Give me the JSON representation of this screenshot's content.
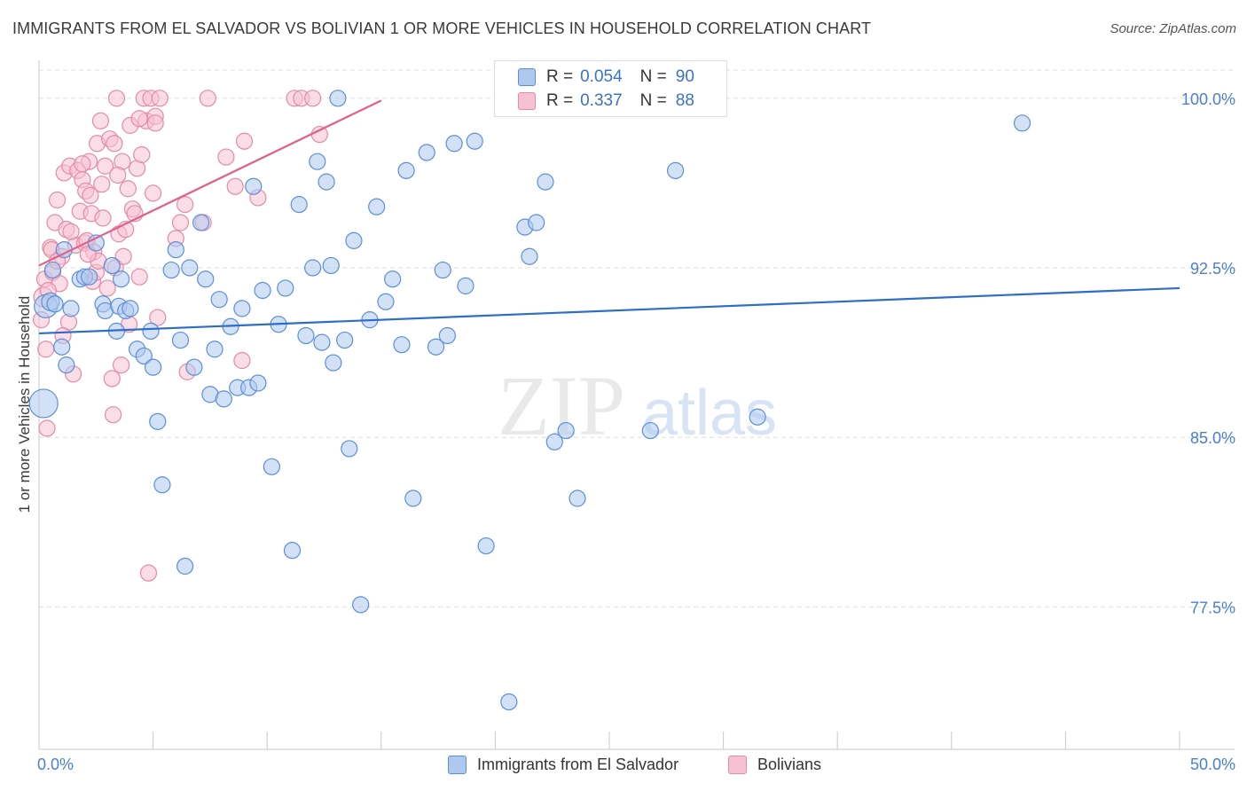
{
  "title": "IMMIGRANTS FROM EL SALVADOR VS BOLIVIAN 1 OR MORE VEHICLES IN HOUSEHOLD CORRELATION CHART",
  "source": "Source: ZipAtlas.com",
  "watermark": {
    "zip": "ZIP",
    "atlas": "atlas"
  },
  "legend": {
    "rows": [
      {
        "r_label": "R =",
        "r_value": "0.054",
        "n_label": "N =",
        "n_value": "90"
      },
      {
        "r_label": "R =",
        "r_value": "0.337",
        "n_label": "N =",
        "n_value": "88"
      }
    ]
  },
  "bottom_legend": [
    "Immigrants from El Salvador",
    "Bolivians"
  ],
  "colors": {
    "blue_fill": "#aec8ee",
    "blue_stroke": "#5b8fd8",
    "blue_line": "#2e6dc8",
    "pink_fill": "#f6c1d1",
    "pink_stroke": "#e58aa8",
    "pink_line": "#e0608a",
    "tick_label": "#4a7fd0",
    "grid": "#dedede"
  },
  "chart_data": {
    "type": "scatter",
    "title": "IMMIGRANTS FROM EL SALVADOR VS BOLIVIAN 1 OR MORE VEHICLES IN HOUSEHOLD CORRELATION CHART",
    "xlabel": "",
    "ylabel": "1 or more Vehicles in Household",
    "xlim": [
      0,
      50
    ],
    "ylim": [
      71.2,
      101.6
    ],
    "x_tick_labels": [
      {
        "value": 0,
        "label": "0.0%"
      },
      {
        "value": 50,
        "label": "50.0%"
      }
    ],
    "y_ticks": [
      {
        "value": 100.0,
        "label": "100.0%"
      },
      {
        "value": 92.5,
        "label": "92.5%"
      },
      {
        "value": 85.0,
        "label": "85.0%"
      },
      {
        "value": 77.5,
        "label": "77.5%"
      }
    ],
    "grid": true,
    "series": [
      {
        "name": "Immigrants from El Salvador",
        "color": "blue",
        "trend": {
          "x": [
            0,
            50
          ],
          "y": [
            89.6,
            91.6
          ]
        },
        "points": [
          [
            0.2,
            86.5,
            16
          ],
          [
            0.3,
            90.8,
            13
          ],
          [
            0.5,
            91.0,
            10
          ],
          [
            0.7,
            90.9,
            9
          ],
          [
            1.0,
            89.0,
            9
          ],
          [
            1.2,
            88.2,
            9
          ],
          [
            1.4,
            90.7,
            9
          ],
          [
            1.8,
            92.0,
            9
          ],
          [
            2.0,
            92.1,
            9
          ],
          [
            2.2,
            92.1,
            9
          ],
          [
            2.5,
            93.6,
            9
          ],
          [
            2.8,
            90.9,
            9
          ],
          [
            2.9,
            90.6,
            9
          ],
          [
            3.2,
            92.6,
            9
          ],
          [
            3.4,
            89.7,
            9
          ],
          [
            3.5,
            90.8,
            9
          ],
          [
            3.8,
            90.6,
            9
          ],
          [
            4.0,
            90.7,
            9
          ],
          [
            4.3,
            88.9,
            9
          ],
          [
            4.6,
            88.6,
            9
          ],
          [
            4.9,
            89.7,
            9
          ],
          [
            5.0,
            88.1,
            9
          ],
          [
            5.2,
            85.7,
            9
          ],
          [
            5.4,
            82.9,
            9
          ],
          [
            5.8,
            92.4,
            9
          ],
          [
            6.0,
            93.3,
            9
          ],
          [
            6.2,
            89.3,
            9
          ],
          [
            6.4,
            79.3,
            9
          ],
          [
            6.6,
            92.5,
            9
          ],
          [
            6.8,
            88.1,
            9
          ],
          [
            7.1,
            94.5,
            9
          ],
          [
            7.3,
            92.0,
            9
          ],
          [
            7.5,
            86.9,
            9
          ],
          [
            7.7,
            88.9,
            9
          ],
          [
            7.9,
            91.1,
            9
          ],
          [
            8.1,
            86.7,
            9
          ],
          [
            8.4,
            89.9,
            9
          ],
          [
            8.7,
            87.2,
            9
          ],
          [
            8.9,
            90.7,
            9
          ],
          [
            9.2,
            87.2,
            9
          ],
          [
            9.4,
            96.1,
            9
          ],
          [
            9.6,
            87.4,
            9
          ],
          [
            9.8,
            91.5,
            9
          ],
          [
            10.2,
            83.7,
            9
          ],
          [
            10.5,
            90.0,
            9
          ],
          [
            10.8,
            91.6,
            9
          ],
          [
            11.1,
            80.0,
            9
          ],
          [
            11.4,
            95.3,
            9
          ],
          [
            11.7,
            89.5,
            9
          ],
          [
            12.0,
            92.5,
            9
          ],
          [
            12.2,
            97.2,
            9
          ],
          [
            12.4,
            89.2,
            9
          ],
          [
            12.6,
            96.3,
            9
          ],
          [
            12.8,
            92.6,
            9
          ],
          [
            12.9,
            88.3,
            9
          ],
          [
            13.1,
            100.0,
            9
          ],
          [
            13.4,
            89.3,
            9
          ],
          [
            13.6,
            84.5,
            9
          ],
          [
            13.8,
            93.7,
            9
          ],
          [
            14.1,
            77.6,
            9
          ],
          [
            14.5,
            90.2,
            9
          ],
          [
            14.8,
            95.2,
            9
          ],
          [
            15.2,
            91.0,
            9
          ],
          [
            15.5,
            92.0,
            9
          ],
          [
            15.9,
            89.1,
            9
          ],
          [
            16.1,
            96.8,
            9
          ],
          [
            16.4,
            82.3,
            9
          ],
          [
            17.0,
            97.6,
            9
          ],
          [
            17.4,
            89.0,
            9
          ],
          [
            17.7,
            92.4,
            9
          ],
          [
            17.9,
            89.5,
            9
          ],
          [
            18.2,
            98.0,
            9
          ],
          [
            18.7,
            91.7,
            9
          ],
          [
            19.1,
            98.1,
            9
          ],
          [
            19.6,
            80.2,
            9
          ],
          [
            20.6,
            73.3,
            9
          ],
          [
            21.3,
            94.3,
            9
          ],
          [
            21.5,
            93.0,
            9
          ],
          [
            21.8,
            94.5,
            9
          ],
          [
            22.2,
            96.3,
            9
          ],
          [
            22.6,
            84.8,
            9
          ],
          [
            23.1,
            85.3,
            9
          ],
          [
            23.6,
            82.3,
            9
          ],
          [
            26.8,
            85.3,
            9
          ],
          [
            27.9,
            96.8,
            9
          ],
          [
            31.5,
            85.9,
            9
          ],
          [
            43.1,
            98.9,
            9
          ],
          [
            1.1,
            93.3,
            9
          ],
          [
            0.6,
            92.4,
            9
          ],
          [
            3.6,
            92.0,
            9
          ]
        ]
      },
      {
        "name": "Bolivians",
        "color": "pink",
        "trend": {
          "x": [
            0,
            15
          ],
          "y": [
            92.6,
            99.9
          ]
        },
        "points": [
          [
            0.1,
            90.2,
            9
          ],
          [
            0.2,
            91.2,
            11
          ],
          [
            0.25,
            92.0,
            9
          ],
          [
            0.3,
            88.9,
            9
          ],
          [
            0.35,
            85.4,
            9
          ],
          [
            0.5,
            93.4,
            9
          ],
          [
            0.55,
            93.3,
            9
          ],
          [
            0.6,
            92.3,
            9
          ],
          [
            0.7,
            94.5,
            9
          ],
          [
            0.8,
            95.5,
            9
          ],
          [
            0.9,
            91.8,
            9
          ],
          [
            1.0,
            93.0,
            9
          ],
          [
            1.1,
            96.7,
            9
          ],
          [
            1.2,
            94.2,
            9
          ],
          [
            1.3,
            90.1,
            9
          ],
          [
            1.35,
            97.0,
            9
          ],
          [
            1.5,
            87.8,
            9
          ],
          [
            1.6,
            93.5,
            9
          ],
          [
            1.7,
            96.8,
            9
          ],
          [
            1.8,
            95.0,
            9
          ],
          [
            1.9,
            96.4,
            9
          ],
          [
            2.0,
            93.6,
            9
          ],
          [
            2.05,
            95.9,
            9
          ],
          [
            2.1,
            93.7,
            9
          ],
          [
            2.2,
            97.2,
            9
          ],
          [
            2.25,
            95.7,
            9
          ],
          [
            2.3,
            94.9,
            9
          ],
          [
            2.35,
            91.9,
            9
          ],
          [
            2.4,
            93.2,
            9
          ],
          [
            2.5,
            92.3,
            9
          ],
          [
            2.55,
            98.0,
            9
          ],
          [
            2.6,
            92.8,
            9
          ],
          [
            2.7,
            99.0,
            9
          ],
          [
            2.8,
            94.7,
            9
          ],
          [
            2.9,
            97.0,
            9
          ],
          [
            3.0,
            91.6,
            9
          ],
          [
            3.1,
            98.2,
            9
          ],
          [
            3.2,
            87.6,
            9
          ],
          [
            3.25,
            86.0,
            9
          ],
          [
            3.3,
            98.0,
            9
          ],
          [
            3.35,
            92.5,
            9
          ],
          [
            3.4,
            100.0,
            9
          ],
          [
            3.5,
            94.0,
            9
          ],
          [
            3.6,
            88.2,
            9
          ],
          [
            3.7,
            93.0,
            9
          ],
          [
            3.8,
            94.2,
            9
          ],
          [
            3.9,
            96.0,
            9
          ],
          [
            3.95,
            90.0,
            9
          ],
          [
            4.0,
            98.8,
            9
          ],
          [
            4.1,
            95.1,
            9
          ],
          [
            4.2,
            94.9,
            9
          ],
          [
            4.3,
            96.9,
            9
          ],
          [
            4.4,
            92.1,
            9
          ],
          [
            4.5,
            97.5,
            9
          ],
          [
            4.6,
            100.0,
            9
          ],
          [
            4.7,
            99.0,
            9
          ],
          [
            4.8,
            79.0,
            9
          ],
          [
            4.9,
            100.0,
            9
          ],
          [
            5.0,
            95.8,
            9
          ],
          [
            5.1,
            99.2,
            9
          ],
          [
            5.2,
            90.3,
            9
          ],
          [
            5.3,
            100.0,
            9
          ],
          [
            6.0,
            93.8,
            9
          ],
          [
            6.2,
            94.5,
            9
          ],
          [
            6.4,
            95.3,
            9
          ],
          [
            6.5,
            87.9,
            9
          ],
          [
            7.2,
            94.5,
            9
          ],
          [
            7.4,
            100.0,
            9
          ],
          [
            8.2,
            97.4,
            9
          ],
          [
            8.6,
            96.1,
            9
          ],
          [
            8.9,
            88.4,
            9
          ],
          [
            9.0,
            98.1,
            9
          ],
          [
            9.6,
            95.6,
            9
          ],
          [
            11.2,
            100.0,
            9
          ],
          [
            11.5,
            100.0,
            9
          ],
          [
            12.0,
            100.0,
            9
          ],
          [
            12.3,
            98.4,
            9
          ],
          [
            0.4,
            91.5,
            9
          ],
          [
            0.8,
            92.8,
            9
          ],
          [
            1.4,
            94.1,
            9
          ],
          [
            2.15,
            93.1,
            9
          ],
          [
            2.75,
            96.2,
            9
          ],
          [
            1.05,
            89.5,
            9
          ],
          [
            1.9,
            97.1,
            9
          ],
          [
            3.65,
            97.2,
            9
          ],
          [
            5.1,
            98.9,
            9
          ],
          [
            4.4,
            99.1,
            9
          ],
          [
            3.45,
            96.6,
            9
          ]
        ]
      }
    ]
  }
}
